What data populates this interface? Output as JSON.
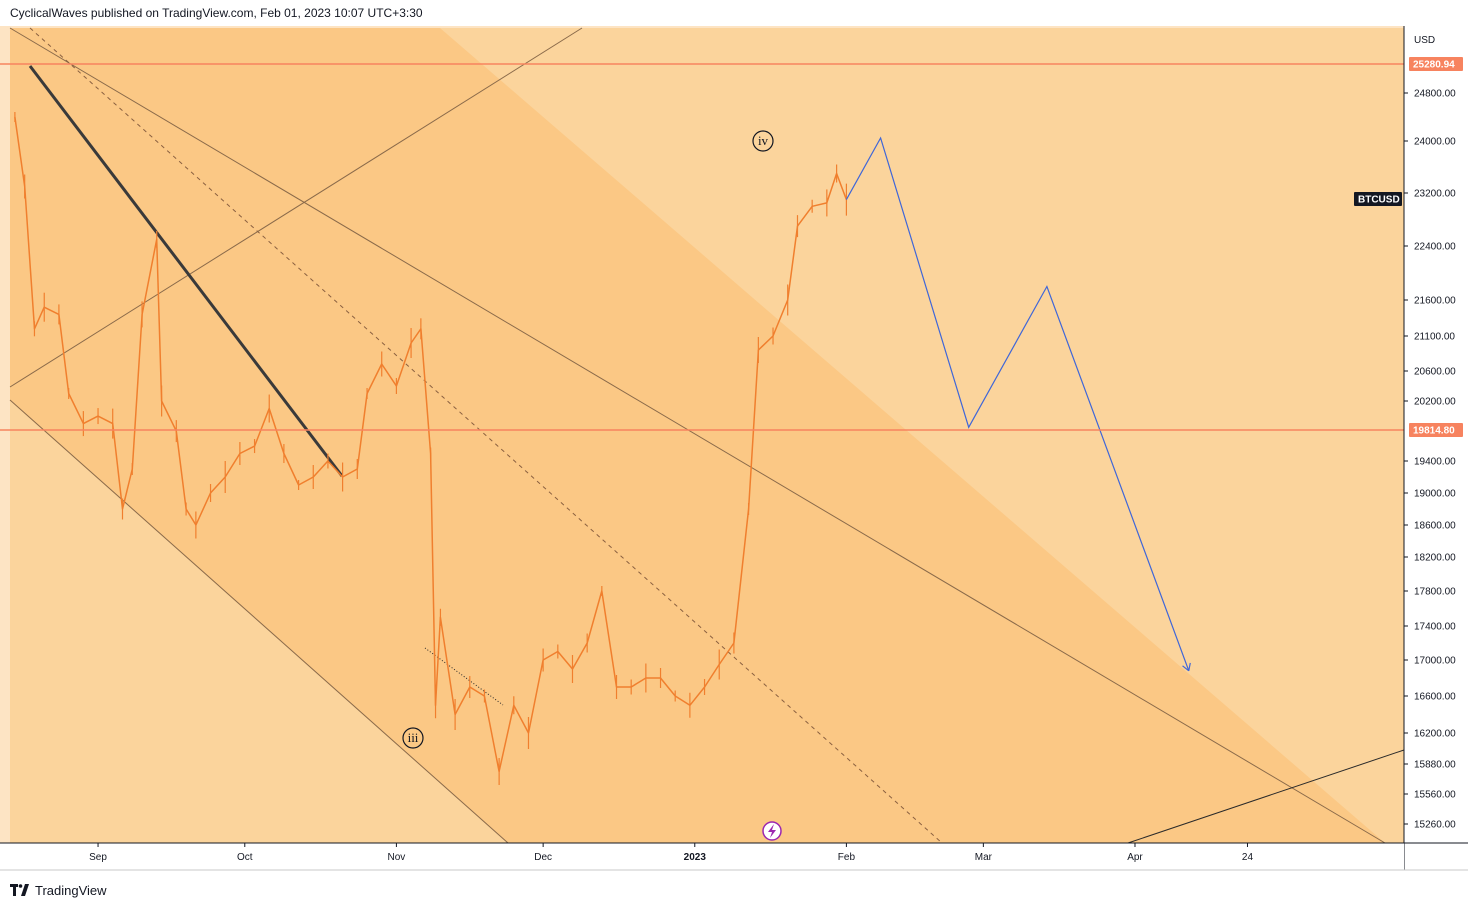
{
  "header": {
    "text": "CyclicalWaves published on TradingView.com, Feb 01, 2023 10:07 UTC+3:30"
  },
  "footer": {
    "brand": "TradingView",
    "logo_icon": "tradingview-logo-icon"
  },
  "colors": {
    "background": "#fbd49c",
    "channel_fill": "#fbc885",
    "price": "#f07f2e",
    "level_line": "#f7835f",
    "projection": "#3f66d8",
    "trendline": "#3a3a3a",
    "channel_line": "#8a6a4a",
    "axis_bg": "#fde4c4"
  },
  "chart_data": {
    "type": "line",
    "symbol": "BTCUSD",
    "currency": "USD",
    "x_ticks": [
      "Sep",
      "Oct",
      "Nov",
      "Dec",
      "2023",
      "Feb",
      "Mar",
      "Apr",
      "24"
    ],
    "y_ticks": [
      "24800.00",
      "24000.00",
      "23200.00",
      "22400.00",
      "21600.00",
      "21100.00",
      "20600.00",
      "20200.00",
      "19400.00",
      "19000.00",
      "18600.00",
      "18200.00",
      "17800.00",
      "17400.00",
      "17000.00",
      "16600.00",
      "16200.00",
      "15880.00",
      "15560.00",
      "15260.00"
    ],
    "horizontal_levels": [
      "25280.94",
      "19814.80"
    ],
    "symbol_label": "BTCUSD",
    "series": [
      {
        "values": [
          [
            "2022-08-15",
            24400
          ],
          [
            "2022-08-17",
            23300
          ],
          [
            "2022-08-19",
            21200
          ],
          [
            "2022-08-21",
            21500
          ],
          [
            "2022-08-24",
            21400
          ],
          [
            "2022-08-26",
            20300
          ],
          [
            "2022-08-29",
            19900
          ],
          [
            "2022-09-01",
            20000
          ],
          [
            "2022-09-04",
            19900
          ],
          [
            "2022-09-06",
            18800
          ],
          [
            "2022-09-08",
            19300
          ],
          [
            "2022-09-10",
            21400
          ],
          [
            "2022-09-13",
            22500
          ],
          [
            "2022-09-14",
            20200
          ],
          [
            "2022-09-17",
            19800
          ],
          [
            "2022-09-19",
            18800
          ],
          [
            "2022-09-21",
            18600
          ],
          [
            "2022-09-24",
            19000
          ],
          [
            "2022-09-27",
            19200
          ],
          [
            "2022-09-30",
            19500
          ],
          [
            "2022-10-03",
            19600
          ],
          [
            "2022-10-06",
            20100
          ],
          [
            "2022-10-09",
            19500
          ],
          [
            "2022-10-12",
            19100
          ],
          [
            "2022-10-15",
            19200
          ],
          [
            "2022-10-18",
            19400
          ],
          [
            "2022-10-21",
            19200
          ],
          [
            "2022-10-24",
            19300
          ],
          [
            "2022-10-26",
            20300
          ],
          [
            "2022-10-29",
            20700
          ],
          [
            "2022-11-01",
            20400
          ],
          [
            "2022-11-04",
            21000
          ],
          [
            "2022-11-06",
            21200
          ],
          [
            "2022-11-08",
            19500
          ],
          [
            "2022-11-09",
            16500
          ],
          [
            "2022-11-10",
            17500
          ],
          [
            "2022-11-13",
            16400
          ],
          [
            "2022-11-16",
            16700
          ],
          [
            "2022-11-19",
            16600
          ],
          [
            "2022-11-22",
            15800
          ],
          [
            "2022-11-25",
            16500
          ],
          [
            "2022-11-28",
            16200
          ],
          [
            "2022-12-01",
            17000
          ],
          [
            "2022-12-04",
            17100
          ],
          [
            "2022-12-07",
            16900
          ],
          [
            "2022-12-10",
            17200
          ],
          [
            "2022-12-13",
            17800
          ],
          [
            "2022-12-16",
            16700
          ],
          [
            "2022-12-19",
            16700
          ],
          [
            "2022-12-22",
            16800
          ],
          [
            "2022-12-25",
            16800
          ],
          [
            "2022-12-28",
            16600
          ],
          [
            "2022-12-31",
            16500
          ],
          [
            "2023-01-03",
            16700
          ],
          [
            "2023-01-06",
            16950
          ],
          [
            "2023-01-09",
            17200
          ],
          [
            "2023-01-12",
            18800
          ],
          [
            "2023-01-14",
            20900
          ],
          [
            "2023-01-17",
            21100
          ],
          [
            "2023-01-20",
            21600
          ],
          [
            "2023-01-22",
            22700
          ],
          [
            "2023-01-25",
            23000
          ],
          [
            "2023-01-28",
            23050
          ],
          [
            "2023-01-30",
            23500
          ],
          [
            "2023-02-01",
            23100
          ]
        ]
      },
      {
        "name": "projection",
        "values": [
          [
            "2023-02-01",
            23100
          ],
          [
            "2023-02-08",
            24050
          ],
          [
            "2023-02-26",
            19850
          ],
          [
            "2023-03-14",
            21800
          ],
          [
            "2023-04-12",
            16880
          ]
        ]
      }
    ],
    "annotations": [
      "iii",
      "iv"
    ],
    "ylim": [
      15000,
      25700
    ],
    "xlim": [
      "2022-08-14",
      "2023-05-26"
    ],
    "grid": false,
    "legend": "none"
  }
}
